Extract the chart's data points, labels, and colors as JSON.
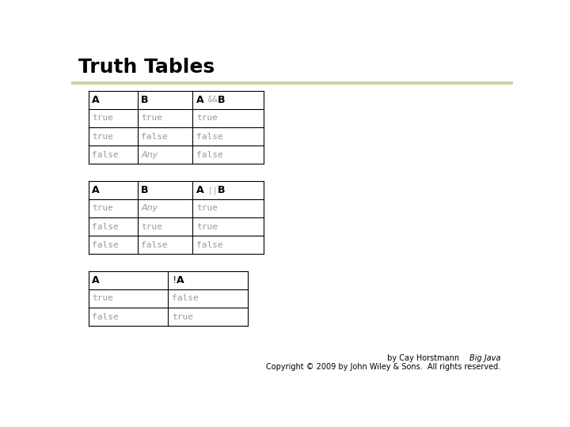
{
  "title": "Truth Tables",
  "title_fontsize": 18,
  "title_fontweight": "bold",
  "bg_color": "#ffffff",
  "header_line_color": "#c8d9a0",
  "table1": {
    "headers": [
      "A",
      "B",
      "A && B"
    ],
    "rows": [
      [
        "true",
        "true",
        "true"
      ],
      [
        "true",
        "false",
        "false"
      ],
      [
        "false",
        "Any",
        "false"
      ]
    ],
    "row_italic": [
      [
        false,
        false,
        false
      ],
      [
        false,
        false,
        false
      ],
      [
        false,
        true,
        false
      ]
    ]
  },
  "table2": {
    "headers": [
      "A",
      "B",
      "A || B"
    ],
    "rows": [
      [
        "true",
        "Any",
        "true"
      ],
      [
        "false",
        "true",
        "true"
      ],
      [
        "false",
        "false",
        "false"
      ]
    ],
    "row_italic": [
      [
        false,
        true,
        false
      ],
      [
        false,
        false,
        false
      ],
      [
        false,
        false,
        false
      ]
    ]
  },
  "table3": {
    "headers": [
      "A",
      "!A"
    ],
    "rows": [
      [
        "true",
        "false"
      ],
      [
        "false",
        "true"
      ]
    ],
    "row_italic": [
      [
        false,
        false
      ],
      [
        false,
        false
      ]
    ]
  },
  "footer_italic": "Big Java",
  "footer_rest": " by Cay Horstmann",
  "footer_line2": "Copyright © 2009 by John Wiley & Sons.  All rights reserved.",
  "cell_color": "#999999",
  "header_bold_color": "#000000",
  "header_small_color": "#999999"
}
